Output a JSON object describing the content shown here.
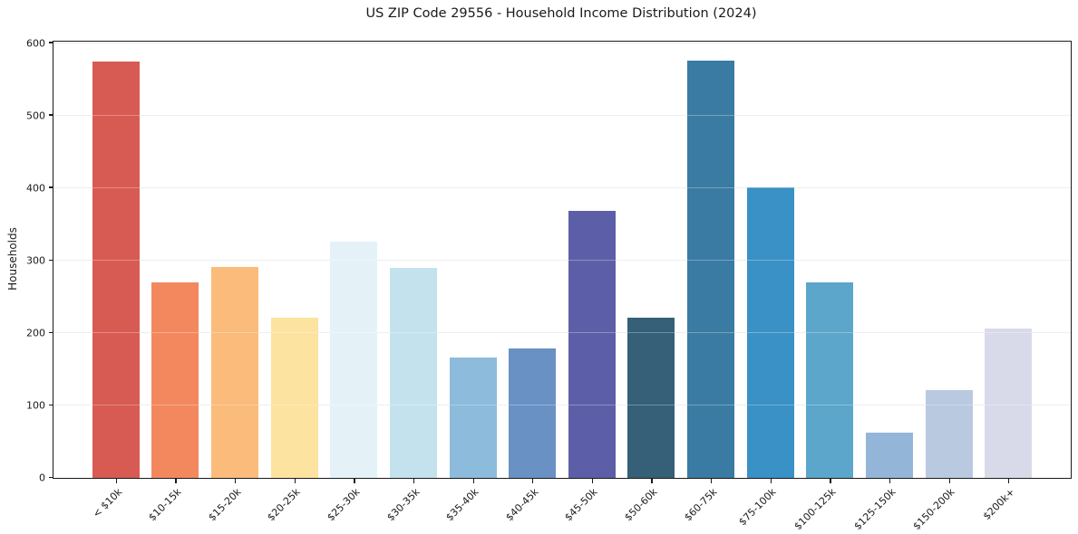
{
  "chart_data": {
    "type": "bar",
    "title": "US ZIP Code 29556 - Household Income Distribution (2024)",
    "xlabel": "",
    "ylabel": "Households",
    "ylim": [
      0,
      600
    ],
    "yticks": [
      0,
      100,
      200,
      300,
      400,
      500,
      600
    ],
    "grid": "horizontal",
    "legend": "none",
    "categories": [
      "< $10k",
      "$10-15k",
      "$15-20k",
      "$20-25k",
      "$25-30k",
      "$30-35k",
      "$35-40k",
      "$40-45k",
      "$45-50k",
      "$50-60k",
      "$60-75k",
      "$75-100k",
      "$100-125k",
      "$125-150k",
      "$150-200k",
      "$200k+"
    ],
    "values": [
      574,
      270,
      291,
      221,
      326,
      290,
      166,
      178,
      368,
      221,
      576,
      401,
      270,
      63,
      121,
      206
    ],
    "bar_colors": [
      "#d75b53",
      "#f3885f",
      "#fbbb7a",
      "#fde3a0",
      "#e4f2f8",
      "#c4e2ee",
      "#8dbbdb",
      "#6991c4",
      "#5c5fa8",
      "#356077",
      "#3a7ba3",
      "#3991c5",
      "#5ba6ca",
      "#93b6d8",
      "#b9c9df",
      "#d8daea"
    ]
  },
  "colors": {
    "background": "#ffffff",
    "grid": "#e7e7e7",
    "spine": "#1a1a1a",
    "text": "#1a1a1a"
  }
}
